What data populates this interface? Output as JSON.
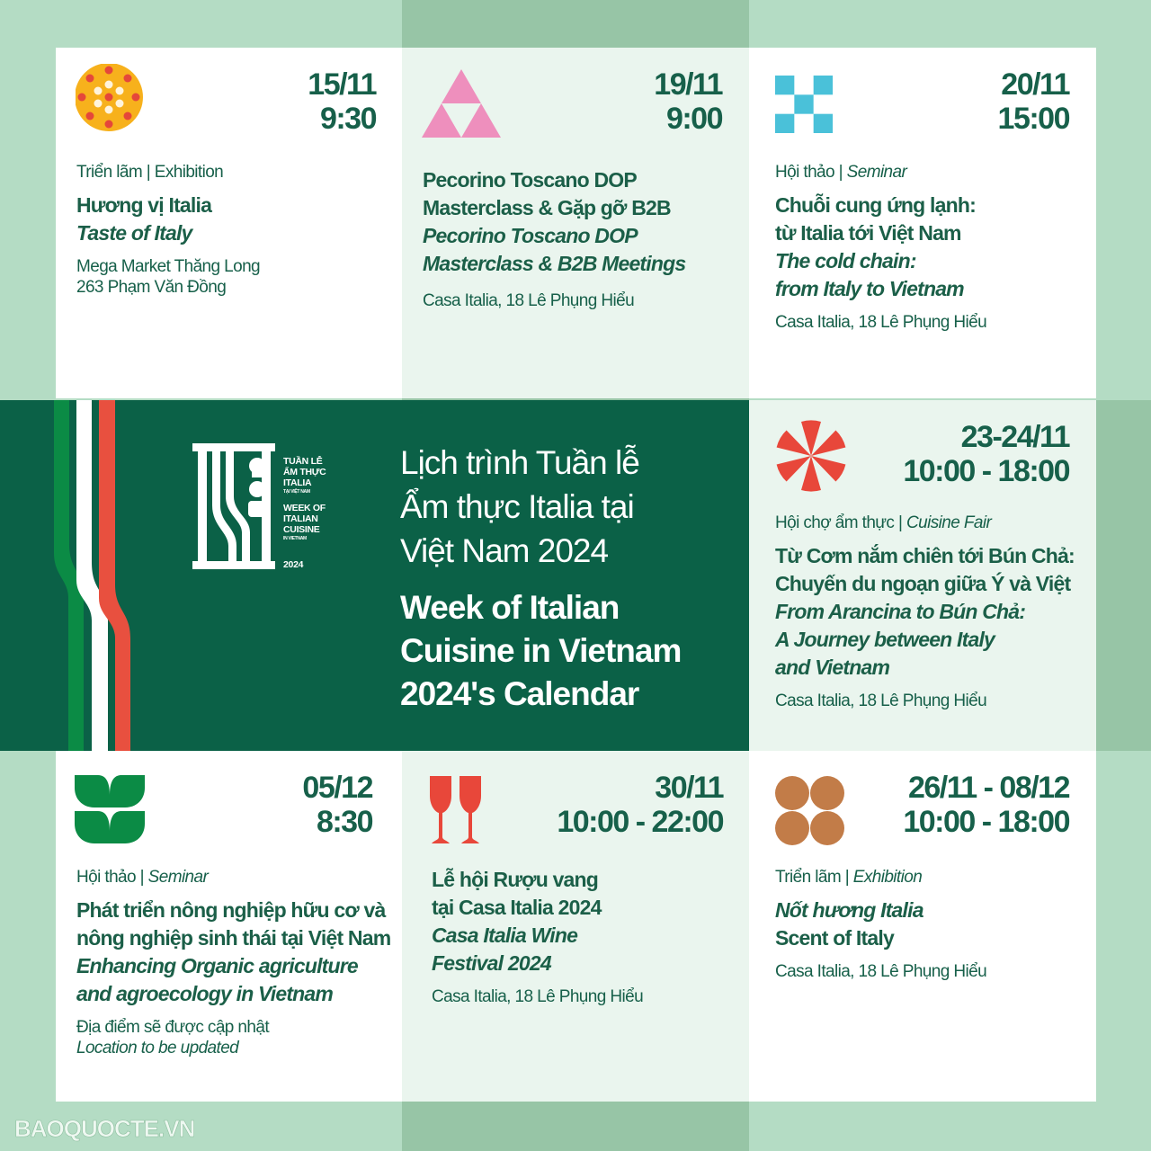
{
  "colors": {
    "background": "#b4dcc4",
    "band": "#97c5a6",
    "banner": "#0b6147",
    "text": "#17604a",
    "italy_green": "#0b8b45",
    "italy_red": "#e8503f"
  },
  "banner": {
    "logo": {
      "vi_line1": "TUẦN LỄ",
      "vi_line2": "ẨM THỰC",
      "vi_line3": "ITALIA",
      "vi_line4": "TẠI VIỆT NAM",
      "en_line1": "WEEK OF",
      "en_line2": "ITALIAN",
      "en_line3": "CUISINE",
      "en_line4": "IN VIETNAM",
      "year": "2024"
    },
    "title_vi": [
      "Lịch trình Tuần lễ",
      "Ẩm thực Italia tại",
      "Việt Nam 2024"
    ],
    "title_en": [
      "Week of Italian",
      "Cuisine in Vietnam",
      "2024's Calendar"
    ]
  },
  "events": [
    {
      "icon": "sun-dots-icon",
      "date": "15/11",
      "time": "9:30",
      "category": "Triển lãm | Exhibition",
      "title": [
        "Hương vị Italia"
      ],
      "title_en": [
        "Taste of Italy"
      ],
      "location": [
        "Mega Market Thăng Long",
        "263 Phạm Văn Đồng"
      ]
    },
    {
      "icon": "triangle-icon",
      "date": "19/11",
      "time": "9:00",
      "category": "",
      "title": [
        "Pecorino Toscano DOP",
        "Masterclass & Gặp gỡ B2B"
      ],
      "title_en": [
        "Pecorino Toscano DOP",
        "Masterclass & B2B Meetings"
      ],
      "location": [
        "Casa Italia, 18 Lê Phụng Hiểu"
      ]
    },
    {
      "icon": "checker-icon",
      "date": "20/11",
      "time": "15:00",
      "category": "Hội thảo",
      "category_en": "Seminar",
      "title": [
        "Chuỗi cung ứng lạnh:",
        "từ Italia tới Việt Nam"
      ],
      "title_en": [
        "The cold chain:",
        "from Italy to Vietnam"
      ],
      "location": [
        "Casa Italia, 18 Lê Phụng Hiểu"
      ]
    },
    {
      "icon": "pinwheel-icon",
      "date": "23-24/11",
      "time": "10:00 - 18:00",
      "category": "Hội chợ ẩm thực",
      "category_en": "Cuisine Fair",
      "title": [
        "Từ Cơm nắm chiên tới Bún Chả:",
        "Chuyến du ngoạn giữa Ý và Việt"
      ],
      "title_en": [
        "From Arancina to Bún Chả:",
        "A Journey between Italy",
        "and Vietnam"
      ],
      "location": [
        "Casa Italia, 18 Lê Phụng Hiểu"
      ]
    },
    {
      "icon": "leaf-icon",
      "date": "05/12",
      "time": "8:30",
      "category": "Hội thảo",
      "category_en": "Seminar",
      "title": [
        "Phát triển nông nghiệp hữu cơ và",
        "nông nghiệp sinh thái tại Việt Nam"
      ],
      "title_en": [
        "Enhancing Organic agriculture",
        "and agroecology in Vietnam"
      ],
      "location": [
        "Địa điểm sẽ được cập nhật"
      ],
      "location_en": "Location to be updated"
    },
    {
      "icon": "wine-glasses-icon",
      "date": "30/11",
      "time": "10:00 - 22:00",
      "category": "",
      "title": [
        "Lễ hội Rượu vang",
        "tại Casa Italia 2024"
      ],
      "title_en": [
        "Casa Italia Wine",
        "Festival 2024"
      ],
      "location": [
        "Casa Italia, 18 Lê Phụng Hiểu"
      ]
    },
    {
      "icon": "four-circles-icon",
      "date": "26/11 - 08/12",
      "time": "10:00 - 18:00",
      "category": "Triển lãm",
      "category_en": "Exhibition",
      "title_en_first": [
        "Nốt hương Italia"
      ],
      "title": [
        "Scent of Italy"
      ],
      "location": [
        "Casa Italia, 18 Lê Phụng Hiểu"
      ]
    }
  ],
  "watermark": "BAOQUOCTE.VN"
}
